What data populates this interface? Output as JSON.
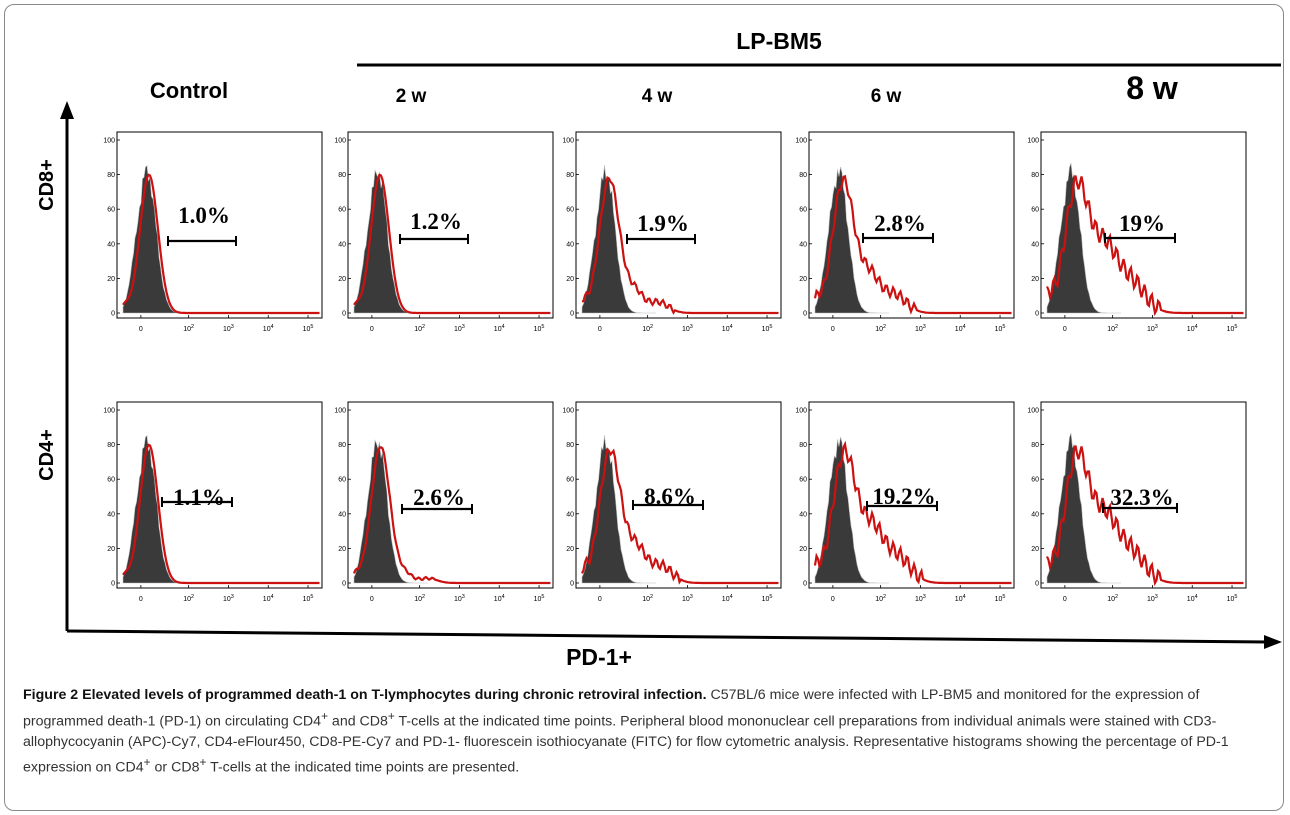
{
  "figure": {
    "group_label": "LP-BM5",
    "control_label": "Control",
    "timepoints": [
      "2 w",
      "4 w",
      "6 w",
      "8 w"
    ],
    "row_labels": [
      "CD8+",
      "CD4+"
    ],
    "x_axis_label": "PD-1+",
    "y_ticks": [
      "100",
      "80",
      "60",
      "40",
      "20",
      "0"
    ],
    "x_ticks": [
      "0",
      "10",
      "10",
      "10",
      "10"
    ],
    "x_tick_exponents": [
      "",
      "2",
      "3",
      "4",
      "5"
    ]
  },
  "chart_data": {
    "type": "histogram",
    "panels": [
      {
        "row": "CD8+",
        "column": "Control",
        "percent_label": "1.0%"
      },
      {
        "row": "CD8+",
        "column": "2 w",
        "percent_label": "1.2%"
      },
      {
        "row": "CD8+",
        "column": "4 w",
        "percent_label": "1.9%"
      },
      {
        "row": "CD8+",
        "column": "6 w",
        "percent_label": "2.8%"
      },
      {
        "row": "CD8+",
        "column": "8 w",
        "percent_label": "19%"
      },
      {
        "row": "CD4+",
        "column": "Control",
        "percent_label": "1.1%"
      },
      {
        "row": "CD4+",
        "column": "2 w",
        "percent_label": "2.6%"
      },
      {
        "row": "CD4+",
        "column": "4 w",
        "percent_label": "8.6%"
      },
      {
        "row": "CD4+",
        "column": "6 w",
        "percent_label": "19.2%"
      },
      {
        "row": "CD4+",
        "column": "8 w",
        "percent_label": "32.3%"
      }
    ],
    "ylim": [
      0,
      100
    ],
    "colors": {
      "isotype_fill": "#3a3a3a",
      "pd1_line": "#cc1111"
    }
  },
  "caption": {
    "title": "Figure 2 Elevated levels of programmed death-1 on T-lymphocytes during chronic retroviral infection.",
    "seg1": " C57BL/6 mice were infected with LP-BM5 and monitored for the expression of programmed death-1 (PD-1) on circulating CD4",
    "sup1": "+",
    "seg2": " and CD8",
    "sup2": "+",
    "seg3": " T-cells at the indicated time points. Peripheral blood mononuclear cell preparations from individual animals were stained with CD3- allophycocyanin (APC)-Cy7, CD4-eFlour450, CD8-PE-Cy7 and PD-1- fluorescein isothiocyanate (FITC) for flow cytometric analysis. Representative histograms showing the percentage of PD-1 expression on CD4",
    "sup3": "+",
    "seg4": " or CD8",
    "sup4": "+",
    "seg5": " T-cells at the indicated time points are presented."
  }
}
